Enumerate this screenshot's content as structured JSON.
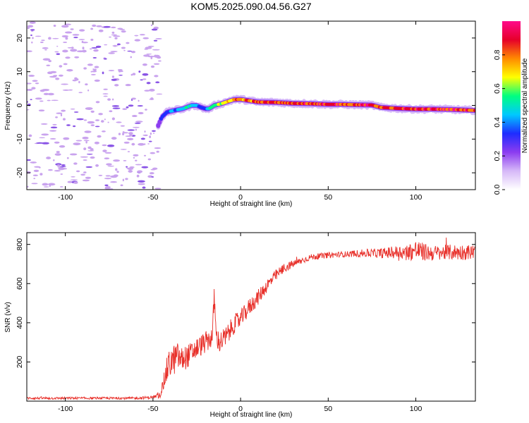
{
  "title": "KOM5.2025.090.04.56.G27",
  "colors": {
    "snr_line": "#e8302a",
    "speckle": "#c9a3ee",
    "speckle_dark": "#8a55e6",
    "colormap": [
      "#ffffff",
      "#d6b8f8",
      "#8c3cf0",
      "#1e2cff",
      "#00c8ff",
      "#00ff80",
      "#ffff00",
      "#ff8a00",
      "#e6002a",
      "#ff0a8a"
    ]
  },
  "chart_data": [
    {
      "type": "heatmap",
      "title": "KOM5.2025.090.04.56.G27",
      "xlabel": "Height of straight line (km)",
      "ylabel": "Frequency (Hz)",
      "xlim": [
        -122,
        134
      ],
      "ylim": [
        -25,
        25
      ],
      "x_ticks": [
        -100,
        -50,
        0,
        50,
        100
      ],
      "y_ticks": [
        -20,
        -10,
        0,
        10,
        20
      ],
      "colorbar": {
        "label": "Normalized spectral amplitude",
        "range": [
          0,
          1
        ],
        "ticks": [
          "0.0",
          "0.2",
          "0.4",
          "0.6",
          "0.8"
        ]
      },
      "ridge": {
        "x": [
          -47,
          -45,
          -42,
          -38,
          -33,
          -28,
          -25,
          -23,
          -20,
          -18,
          -15,
          -11,
          -7,
          -4,
          0,
          5,
          10,
          20,
          30,
          40,
          50,
          58,
          65,
          75,
          80,
          90,
          100,
          110,
          120,
          134
        ],
        "frequency": [
          -6,
          -3.5,
          -2,
          -1.5,
          -1,
          0,
          0,
          -0.5,
          -1,
          -1,
          0,
          0.5,
          1.2,
          1.7,
          1.8,
          1.4,
          1,
          0.9,
          0.6,
          0.5,
          0.3,
          0.3,
          0.2,
          0.1,
          -0.6,
          -0.9,
          -1.1,
          -1.1,
          -1.2,
          -1.5
        ],
        "amplitude": [
          0.2,
          0.3,
          0.35,
          0.4,
          0.45,
          0.5,
          0.45,
          0.35,
          0.4,
          0.5,
          0.6,
          0.65,
          0.7,
          0.75,
          0.8,
          0.8,
          0.85,
          0.85,
          0.85,
          0.9,
          0.9,
          0.9,
          0.9,
          0.9,
          0.85,
          0.85,
          0.9,
          0.9,
          0.9,
          0.85
        ]
      },
      "noise_region_x": [
        -122,
        -50
      ]
    },
    {
      "type": "line",
      "xlabel": "Height of straight line (km)",
      "ylabel": "SNR (v/v)",
      "xlim": [
        -122,
        134
      ],
      "ylim": [
        0,
        860
      ],
      "x_ticks": [
        -100,
        -50,
        0,
        50,
        100
      ],
      "y_ticks": [
        200,
        400,
        600,
        800
      ],
      "series": [
        {
          "x": [
            -122,
            -100,
            -80,
            -60,
            -50,
            -46,
            -44,
            -42,
            -40,
            -38,
            -36,
            -34,
            -30,
            -25,
            -20,
            -16,
            -15,
            -14,
            -12,
            -8,
            -4,
            0,
            5,
            10,
            15,
            20,
            25,
            30,
            40,
            50,
            60,
            70,
            80,
            90,
            95,
            100,
            105,
            110,
            120,
            134
          ],
          "y": [
            15,
            15,
            15,
            15,
            20,
            30,
            90,
            160,
            200,
            210,
            230,
            210,
            230,
            270,
            300,
            330,
            550,
            330,
            300,
            330,
            390,
            420,
            480,
            530,
            590,
            640,
            680,
            700,
            735,
            745,
            750,
            755,
            755,
            760,
            760,
            770,
            760,
            755,
            760,
            760
          ],
          "noise_amp": [
            6,
            6,
            6,
            6,
            8,
            15,
            40,
            70,
            80,
            80,
            70,
            65,
            60,
            55,
            55,
            55,
            80,
            55,
            55,
            55,
            50,
            45,
            45,
            40,
            35,
            30,
            25,
            20,
            15,
            15,
            15,
            20,
            25,
            35,
            40,
            55,
            45,
            40,
            40,
            40
          ]
        }
      ]
    }
  ]
}
